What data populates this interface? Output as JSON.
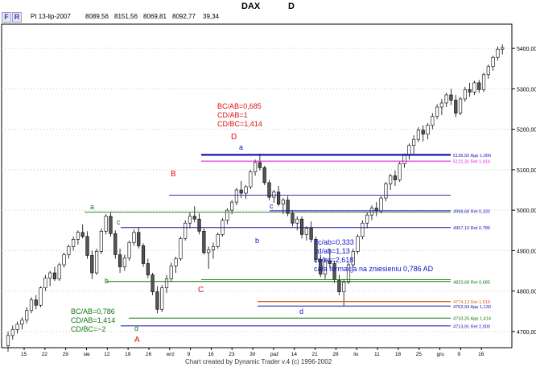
{
  "window": {
    "title": "DAX",
    "timeframe": "D"
  },
  "toolbar": {
    "btn_f": "F",
    "btn_r": "R"
  },
  "infobar": {
    "date": "Pt 13-lip-2007",
    "open": "8089,56",
    "high": "8151,56",
    "low": "8069,81",
    "close": "8092,77",
    "change": "39,34"
  },
  "annotations": {
    "top_ratios": [
      "BC/AB=0,685",
      "CD/AB=1",
      "CD/BC=1,414"
    ],
    "bottom_left_ratios": [
      "BC/AB=0,786",
      "CD/AB=1,414",
      "CD/BC=~2"
    ],
    "right_ratios": [
      "bc/ab=0,333",
      "cd/ab=1,13",
      "cd/bc=2,618",
      "cała formacja na zniesieniu 0,786 AD"
    ],
    "big_A": "A",
    "big_B": "B",
    "big_C": "C",
    "big_D": "D",
    "small_a1": "a",
    "small_b1": "b",
    "small_c1": "c",
    "small_d1": "d",
    "small_a2": "a",
    "small_b2": "b",
    "small_c2": "c",
    "small_d2": "d"
  },
  "levels": [
    {
      "label": "5136,92 App 1,000",
      "color": "#1414b4"
    },
    {
      "label": "5121,31 Ret 1,414",
      "color": "#e020e0"
    },
    {
      "label": "4998,68 Ret 0,333",
      "color": "#1414b4"
    },
    {
      "label": "4957,10 Ret 0,786",
      "color": "#1414b4"
    },
    {
      "label": "4823,68 Ret 0,685",
      "color": "#117711"
    },
    {
      "label": "4774,13 Ret 1,618",
      "color": "#e06020"
    },
    {
      "label": "4762,93 App 1,130",
      "color": "#1414b4"
    },
    {
      "label": "4733,25 App 1,414",
      "color": "#117711"
    },
    {
      "label": "4713,91 Ret 2,000",
      "color": "#1414b4"
    }
  ],
  "price_axis": [
    "5400,00",
    "5300,00",
    "5200,00",
    "5100,00",
    "5000,00",
    "4900,00",
    "4800,00",
    "4700,00"
  ],
  "date_axis": [
    "15",
    "22",
    "29",
    "sie",
    "12",
    "19",
    "26",
    "wrz",
    "9",
    "16",
    "23",
    "30",
    "paź",
    "14",
    "21",
    "28",
    "lis",
    "11",
    "18",
    "25",
    "gru",
    "9",
    "16"
  ],
  "footer": "Chart created by Dynamic Trader v.4  (c) 1996-2002",
  "colors": {
    "bull": "#ffffff",
    "bear": "#555555",
    "grid": "#c8c8c8"
  },
  "chart_data": {
    "type": "candlestick",
    "ylim": [
      4660,
      5460
    ],
    "candles": [
      [
        4665,
        4700,
        4650,
        4690
      ],
      [
        4690,
        4715,
        4680,
        4705
      ],
      [
        4705,
        4725,
        4695,
        4718
      ],
      [
        4718,
        4735,
        4705,
        4728
      ],
      [
        4728,
        4760,
        4720,
        4752
      ],
      [
        4752,
        4785,
        4745,
        4778
      ],
      [
        4778,
        4790,
        4755,
        4765
      ],
      [
        4765,
        4812,
        4760,
        4808
      ],
      [
        4808,
        4840,
        4800,
        4832
      ],
      [
        4832,
        4850,
        4812,
        4845
      ],
      [
        4845,
        4860,
        4825,
        4830
      ],
      [
        4830,
        4870,
        4825,
        4865
      ],
      [
        4865,
        4895,
        4858,
        4890
      ],
      [
        4890,
        4915,
        4880,
        4910
      ],
      [
        4910,
        4935,
        4900,
        4928
      ],
      [
        4928,
        4950,
        4915,
        4945
      ],
      [
        4945,
        4965,
        4930,
        4935
      ],
      [
        4935,
        4948,
        4880,
        4888
      ],
      [
        4888,
        4900,
        4830,
        4845
      ],
      [
        4845,
        4905,
        4840,
        4898
      ],
      [
        4898,
        4955,
        4892,
        4948
      ],
      [
        4948,
        4990,
        4940,
        4985
      ],
      [
        4985,
        4995,
        4935,
        4942
      ],
      [
        4942,
        4950,
        4880,
        4890
      ],
      [
        4890,
        4905,
        4845,
        4860
      ],
      [
        4860,
        4890,
        4850,
        4882
      ],
      [
        4882,
        4925,
        4875,
        4920
      ],
      [
        4920,
        4952,
        4912,
        4945
      ],
      [
        4945,
        4958,
        4905,
        4912
      ],
      [
        4912,
        4918,
        4860,
        4868
      ],
      [
        4868,
        4880,
        4832,
        4840
      ],
      [
        4840,
        4845,
        4790,
        4798
      ],
      [
        4798,
        4812,
        4745,
        4755
      ],
      [
        4755,
        4815,
        4748,
        4808
      ],
      [
        4808,
        4840,
        4795,
        4830
      ],
      [
        4830,
        4870,
        4822,
        4862
      ],
      [
        4862,
        4885,
        4845,
        4880
      ],
      [
        4880,
        4935,
        4875,
        4930
      ],
      [
        4930,
        4975,
        4925,
        4968
      ],
      [
        4968,
        4995,
        4955,
        4985
      ],
      [
        4985,
        5010,
        4970,
        4978
      ],
      [
        4978,
        4992,
        4940,
        4948
      ],
      [
        4948,
        4955,
        4890,
        4895
      ],
      [
        4895,
        4910,
        4855,
        4902
      ],
      [
        4902,
        4920,
        4880,
        4910
      ],
      [
        4910,
        4945,
        4905,
        4940
      ],
      [
        4940,
        4980,
        4935,
        4975
      ],
      [
        4975,
        5005,
        4965,
        5000
      ],
      [
        5000,
        5025,
        4990,
        5020
      ],
      [
        5020,
        5055,
        5012,
        5050
      ],
      [
        5050,
        5072,
        5030,
        5042
      ],
      [
        5042,
        5062,
        5028,
        5058
      ],
      [
        5058,
        5100,
        5052,
        5095
      ],
      [
        5095,
        5125,
        5085,
        5118
      ],
      [
        5118,
        5140,
        5098,
        5105
      ],
      [
        5105,
        5110,
        5062,
        5068
      ],
      [
        5068,
        5075,
        5025,
        5032
      ],
      [
        5032,
        5050,
        5018,
        5045
      ],
      [
        5045,
        5060,
        5010,
        5015
      ],
      [
        5015,
        5030,
        4990,
        5025
      ],
      [
        5025,
        5035,
        4985,
        4992
      ],
      [
        4992,
        5000,
        4960,
        4968
      ],
      [
        4968,
        4985,
        4950,
        4978
      ],
      [
        4978,
        4985,
        4930,
        4940
      ],
      [
        4940,
        4960,
        4925,
        4955
      ],
      [
        4955,
        4972,
        4920,
        4928
      ],
      [
        4928,
        4935,
        4870,
        4878
      ],
      [
        4878,
        4890,
        4835,
        4842
      ],
      [
        4842,
        4880,
        4830,
        4875
      ],
      [
        4875,
        4905,
        4860,
        4868
      ],
      [
        4868,
        4875,
        4820,
        4828
      ],
      [
        4828,
        4840,
        4790,
        4798
      ],
      [
        4798,
        4830,
        4762,
        4822
      ],
      [
        4822,
        4870,
        4818,
        4865
      ],
      [
        4865,
        4905,
        4858,
        4898
      ],
      [
        4898,
        4940,
        4892,
        4935
      ],
      [
        4935,
        4975,
        4928,
        4968
      ],
      [
        4968,
        4995,
        4955,
        4988
      ],
      [
        4988,
        5012,
        4975,
        5005
      ],
      [
        5005,
        5020,
        4985,
        4998
      ],
      [
        4998,
        5035,
        4992,
        5030
      ],
      [
        5030,
        5070,
        5022,
        5065
      ],
      [
        5065,
        5090,
        5050,
        5085
      ],
      [
        5085,
        5098,
        5060,
        5075
      ],
      [
        5075,
        5120,
        5070,
        5115
      ],
      [
        5115,
        5140,
        5105,
        5135
      ],
      [
        5135,
        5165,
        5125,
        5160
      ],
      [
        5160,
        5185,
        5140,
        5175
      ],
      [
        5175,
        5205,
        5168,
        5198
      ],
      [
        5198,
        5210,
        5170,
        5188
      ],
      [
        5188,
        5215,
        5175,
        5210
      ],
      [
        5210,
        5240,
        5200,
        5232
      ],
      [
        5232,
        5262,
        5225,
        5255
      ],
      [
        5255,
        5275,
        5235,
        5265
      ],
      [
        5265,
        5290,
        5255,
        5285
      ],
      [
        5285,
        5300,
        5260,
        5272
      ],
      [
        5272,
        5285,
        5230,
        5240
      ],
      [
        5240,
        5280,
        5235,
        5275
      ],
      [
        5275,
        5305,
        5268,
        5298
      ],
      [
        5298,
        5315,
        5280,
        5292
      ],
      [
        5292,
        5320,
        5285,
        5315
      ],
      [
        5315,
        5322,
        5290,
        5298
      ],
      [
        5298,
        5340,
        5292,
        5335
      ],
      [
        5335,
        5360,
        5325,
        5355
      ],
      [
        5355,
        5382,
        5345,
        5378
      ],
      [
        5378,
        5405,
        5370,
        5398
      ],
      [
        5398,
        5410,
        5385,
        5402
      ]
    ]
  }
}
